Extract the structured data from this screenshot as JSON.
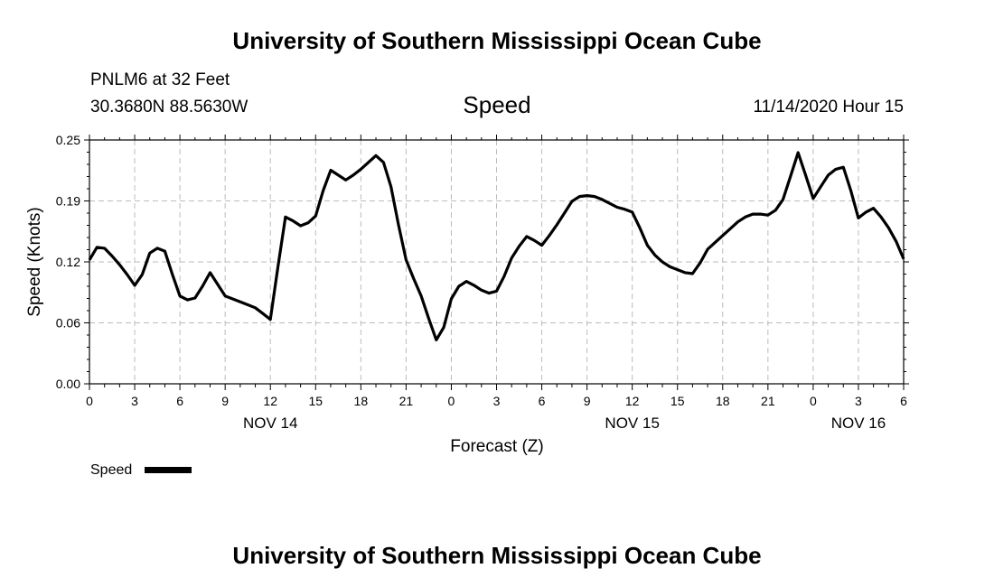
{
  "header": {
    "title": "University of Southern Mississippi Ocean Cube",
    "station": "PNLM6 at 32 Feet",
    "location": "30.3680N 88.5630W",
    "variable": "Speed",
    "datetime": "11/14/2020 Hour 15"
  },
  "footer": {
    "title": "University of Southern Mississippi Ocean Cube"
  },
  "chart_data": {
    "type": "line",
    "title": "Speed",
    "xlabel": "Forecast (Z)",
    "ylabel": "Speed (Knots)",
    "xlim": [
      0,
      54
    ],
    "ylim": [
      0,
      0.25
    ],
    "yticks": [
      "0.00",
      "0.06",
      "0.12",
      "0.19",
      "0.25"
    ],
    "ytick_values": [
      0,
      0.0625,
      0.125,
      0.1875,
      0.25
    ],
    "xticks": [
      "0",
      "3",
      "6",
      "9",
      "12",
      "15",
      "18",
      "21",
      "0",
      "3",
      "6",
      "9",
      "12",
      "15",
      "18",
      "21",
      "0",
      "3",
      "6"
    ],
    "day_labels": [
      {
        "label": "NOV 14",
        "at": 12
      },
      {
        "label": "NOV 15",
        "at": 36
      },
      {
        "label": "NOV 16",
        "at": 51
      }
    ],
    "grid": true,
    "legend": {
      "label": "Speed",
      "placement": "bottom-left"
    },
    "series": [
      {
        "name": "Speed",
        "color": "#000000",
        "x": [
          0,
          0.5,
          1,
          1.5,
          2,
          2.5,
          3,
          3.5,
          4,
          4.5,
          5,
          5.5,
          6,
          6.5,
          7,
          7.5,
          8,
          8.5,
          9,
          9.5,
          10,
          10.5,
          11,
          11.5,
          12,
          12.5,
          13,
          13.5,
          14,
          14.5,
          15,
          15.5,
          16,
          16.5,
          17,
          17.5,
          18,
          18.5,
          19,
          19.5,
          20,
          20.5,
          21,
          21.5,
          22,
          22.5,
          23,
          23.5,
          24,
          24.5,
          25,
          25.5,
          26,
          26.5,
          27,
          27.5,
          28,
          28.5,
          29,
          29.5,
          30,
          30.5,
          31,
          31.5,
          32,
          32.5,
          33,
          33.5,
          34,
          34.5,
          35,
          35.5,
          36,
          36.5,
          37,
          37.5,
          38,
          38.5,
          39,
          39.5,
          40,
          40.5,
          41,
          41.5,
          42,
          42.5,
          43,
          43.5,
          44,
          44.5,
          45,
          45.5,
          46,
          46.5,
          47,
          47.5,
          48,
          48.5,
          49,
          49.5,
          50,
          50.5,
          51,
          51.5,
          52,
          52.5,
          53,
          53.5,
          54
        ],
        "values": [
          0.127,
          0.14,
          0.139,
          0.131,
          0.122,
          0.112,
          0.101,
          0.112,
          0.134,
          0.139,
          0.136,
          0.112,
          0.09,
          0.086,
          0.088,
          0.1,
          0.114,
          0.102,
          0.09,
          0.087,
          0.084,
          0.081,
          0.078,
          0.072,
          0.066,
          0.12,
          0.171,
          0.167,
          0.162,
          0.165,
          0.172,
          0.198,
          0.219,
          0.214,
          0.209,
          0.214,
          0.22,
          0.227,
          0.234,
          0.227,
          0.202,
          0.163,
          0.127,
          0.108,
          0.09,
          0.067,
          0.045,
          0.058,
          0.087,
          0.1,
          0.105,
          0.101,
          0.096,
          0.093,
          0.095,
          0.11,
          0.129,
          0.141,
          0.151,
          0.147,
          0.142,
          0.152,
          0.163,
          0.175,
          0.187,
          0.192,
          0.193,
          0.192,
          0.189,
          0.185,
          0.181,
          0.179,
          0.176,
          0.16,
          0.142,
          0.132,
          0.125,
          0.12,
          0.117,
          0.114,
          0.113,
          0.124,
          0.138,
          0.145,
          0.152,
          0.159,
          0.166,
          0.171,
          0.174,
          0.174,
          0.173,
          0.178,
          0.189,
          0.213,
          0.237,
          0.214,
          0.19,
          0.202,
          0.214,
          0.22,
          0.222,
          0.198,
          0.17,
          0.176,
          0.18,
          0.171,
          0.16,
          0.146,
          0.128
        ]
      }
    ]
  }
}
